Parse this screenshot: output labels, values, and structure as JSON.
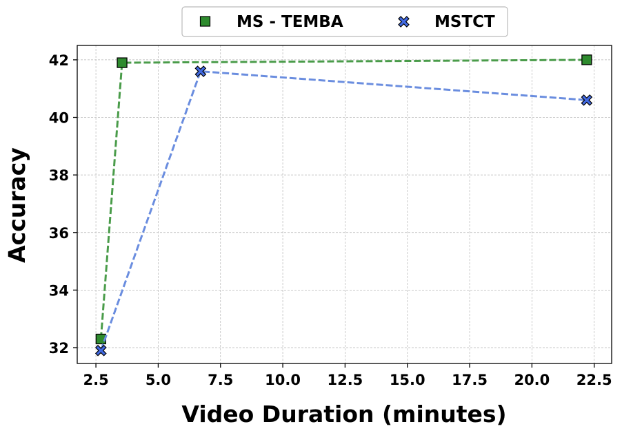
{
  "chart_data": {
    "type": "line",
    "title": "",
    "xlabel": "Video Duration (minutes)",
    "ylabel": "Accuracy",
    "xlim": [
      1.75,
      23.2
    ],
    "ylim": [
      31.45,
      42.5
    ],
    "xticks": [
      "2.5",
      "5.0",
      "7.5",
      "10.0",
      "12.5",
      "15.0",
      "17.5",
      "20.0",
      "22.5"
    ],
    "yticks": [
      "32",
      "34",
      "36",
      "38",
      "40",
      "42"
    ],
    "grid": true,
    "legend_position": "top-center, outside",
    "series": [
      {
        "name": "MS - TEMBA",
        "marker": "square",
        "line_color": "#4a9c4a",
        "marker_color": "#2e8b2e",
        "points": [
          [
            2.7,
            32.3
          ],
          [
            3.55,
            41.9
          ],
          [
            22.2,
            42.0
          ]
        ]
      },
      {
        "name": "MSTCT",
        "marker": "x",
        "line_color": "#6a8ddf",
        "marker_color": "#4169e1",
        "points": [
          [
            2.7,
            31.9
          ],
          [
            6.7,
            41.6
          ],
          [
            22.2,
            40.6
          ]
        ]
      }
    ]
  }
}
